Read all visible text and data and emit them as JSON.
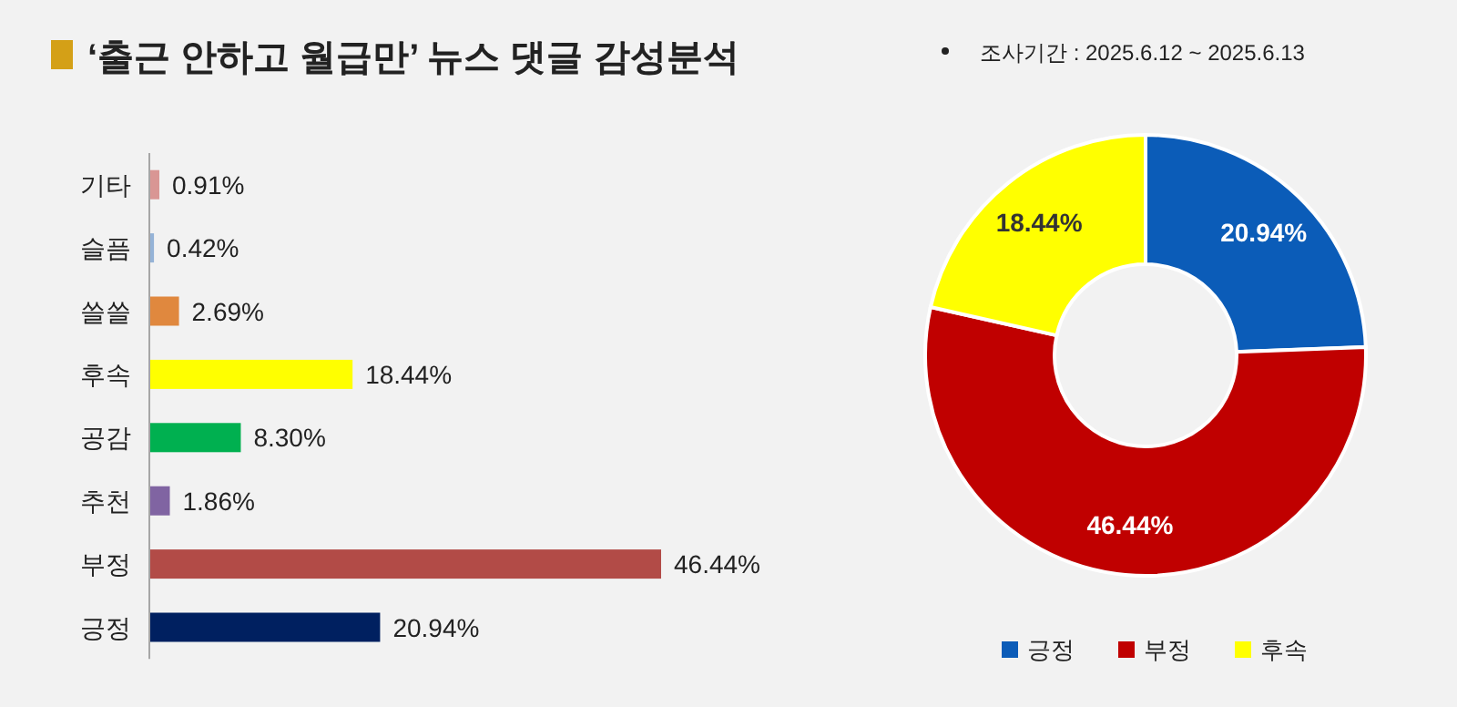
{
  "chart_data": [
    {
      "type": "bar",
      "orientation": "horizontal",
      "title": "‘출근 안하고 월급만’ 뉴스 댓글 감성분석",
      "categories": [
        "기타",
        "슬픔",
        "쓸쓸",
        "후속",
        "공감",
        "추천",
        "부정",
        "긍정"
      ],
      "values": [
        0.91,
        0.42,
        2.69,
        18.44,
        8.3,
        1.86,
        46.44,
        20.94
      ],
      "colors": [
        "#d99694",
        "#95b3d7",
        "#e0883e",
        "#ffff00",
        "#00b050",
        "#8064a2",
        "#b24b47",
        "#002060"
      ],
      "value_labels": [
        "0.91%",
        "0.42%",
        "2.69%",
        "18.44%",
        "8.30%",
        "1.86%",
        "46.44%",
        "20.94%"
      ]
    },
    {
      "type": "donut",
      "annotations": [
        "조사기간 :  2025.6.12 ~ 2025.6.13"
      ],
      "categories": [
        "긍정",
        "부정",
        "후속"
      ],
      "values": [
        20.94,
        46.44,
        18.44
      ],
      "colors": [
        "#0b5cb8",
        "#c00000",
        "#ffff00"
      ],
      "value_labels": [
        "20.94%",
        "46.44%",
        "18.44%"
      ],
      "legend": "bottom"
    }
  ]
}
